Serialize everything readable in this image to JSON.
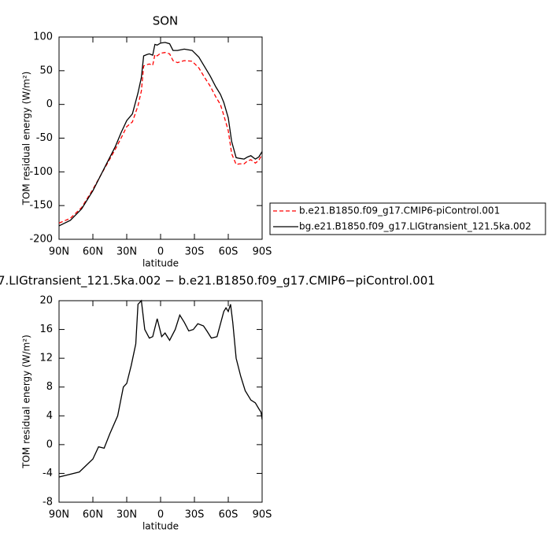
{
  "chart_data": [
    {
      "type": "line",
      "title": "SON",
      "xlabel": "latitude",
      "ylabel": "TOM residual energy (W/m²)",
      "x": [
        90,
        80,
        70,
        60,
        50,
        40,
        35,
        30,
        25,
        20,
        17,
        15,
        12,
        10,
        7,
        5,
        3,
        0,
        -4,
        -8,
        -11,
        -15,
        -21,
        -28,
        -34,
        -39,
        -44,
        -49,
        -53,
        -56,
        -60,
        -63,
        -67,
        -70,
        -74,
        -77,
        -80,
        -84,
        -87,
        -90
      ],
      "xlim": [
        90,
        -90
      ],
      "xticks": [
        {
          "value": 90,
          "label": "90N"
        },
        {
          "value": 60,
          "label": "60N"
        },
        {
          "value": 30,
          "label": "30N"
        },
        0,
        {
          "value": -30,
          "label": "30S"
        },
        {
          "value": -60,
          "label": "60S"
        },
        {
          "value": -90,
          "label": "90S"
        }
      ],
      "ylim": [
        -200,
        100
      ],
      "yticks": [
        -200,
        -150,
        -100,
        -50,
        0,
        50,
        100
      ],
      "legend": "outside-right",
      "series": [
        {
          "name": "b.e21.B1850.f09_g17.CMIP6-piControl.001",
          "color": "#ff0000",
          "dashed": true,
          "values": [
            -176,
            -169,
            -153,
            -126,
            -96,
            -66,
            -50,
            -33,
            -26,
            -2,
            20,
            57,
            59,
            60,
            58,
            74,
            72,
            76,
            77,
            75,
            65,
            62,
            65,
            64,
            54,
            40,
            27,
            11,
            0,
            -16,
            -39,
            -73,
            -89,
            -88,
            -88,
            -84,
            -82,
            -87,
            -83,
            -74
          ]
        },
        {
          "name": "bg.e21.B1850.f09_g17.LIGtransient_121.5ka.002",
          "color": "#000000",
          "dashed": false,
          "values": [
            -180,
            -172,
            -155,
            -128,
            -95,
            -62,
            -42,
            -24,
            -14,
            17,
            40,
            72,
            74,
            75,
            73,
            89,
            88,
            91,
            92,
            90,
            80,
            80,
            82,
            80,
            70,
            56,
            42,
            26,
            15,
            3,
            -20,
            -55,
            -79,
            -80,
            -81,
            -78,
            -76,
            -81,
            -78,
            -70
          ]
        }
      ]
    },
    {
      "type": "line",
      "title": "7.LIGtransient_121.5ka.002 − b.e21.B1850.f09_g17.CMIP6−piControl.001",
      "xlabel": "latitude",
      "ylabel": "TOM residual energy (W/m²)",
      "x": [
        90,
        72,
        60,
        55,
        50,
        45,
        38,
        33,
        30,
        26,
        22,
        20,
        17,
        14,
        10,
        7,
        3,
        -1,
        -4,
        -8,
        -13,
        -17,
        -21,
        -25,
        -29,
        -33,
        -38,
        -41,
        -45,
        -50,
        -56,
        -58,
        -60,
        -62,
        -64,
        -67,
        -71,
        -75,
        -80,
        -84,
        -87,
        -89,
        -90
      ],
      "xlim": [
        90,
        -90
      ],
      "xticks": [
        {
          "value": 90,
          "label": "90N"
        },
        {
          "value": 60,
          "label": "60N"
        },
        {
          "value": 30,
          "label": "30N"
        },
        0,
        {
          "value": -30,
          "label": "30S"
        },
        {
          "value": -60,
          "label": "60S"
        },
        {
          "value": -90,
          "label": "90S"
        }
      ],
      "ylim": [
        -8,
        20
      ],
      "yticks": [
        -8,
        -4,
        0,
        4,
        8,
        12,
        16,
        20
      ],
      "series": [
        {
          "color": "#000000",
          "dashed": false,
          "values": [
            -4.5,
            -3.8,
            -2,
            -0.3,
            -0.5,
            1.5,
            4,
            8,
            8.5,
            11,
            14,
            19.5,
            20,
            16,
            14.8,
            15,
            17.5,
            15,
            15.5,
            14.5,
            16,
            18,
            17,
            15.8,
            16,
            16.8,
            16.5,
            15.8,
            14.8,
            15,
            18.5,
            19,
            18.5,
            19.5,
            17,
            12,
            9.5,
            7.5,
            6.2,
            5.8,
            5,
            4.5,
            3.5
          ]
        }
      ]
    }
  ]
}
